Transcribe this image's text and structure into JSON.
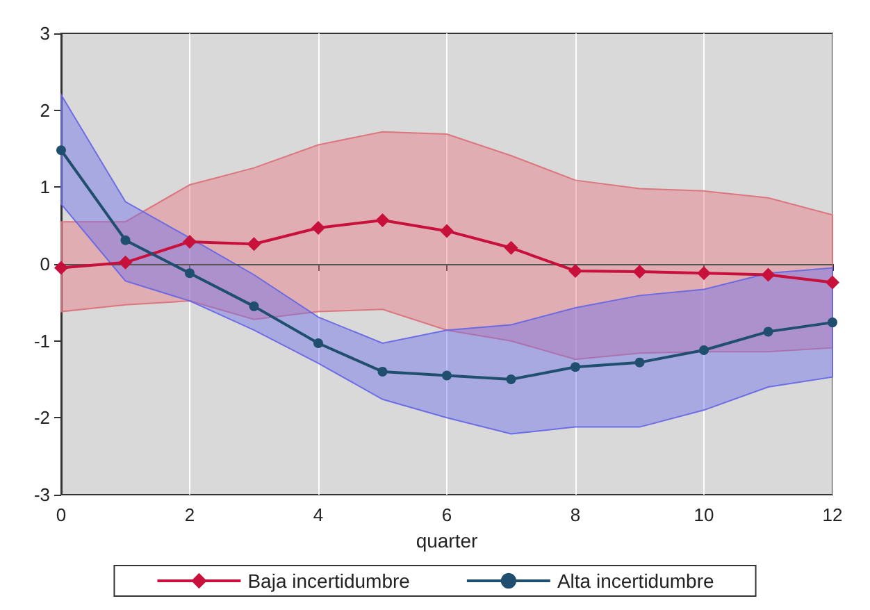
{
  "chart_data": {
    "type": "line",
    "xlabel": "quarter",
    "x": [
      0,
      1,
      2,
      3,
      4,
      5,
      6,
      7,
      8,
      9,
      10,
      11,
      12
    ],
    "series": [
      {
        "name": "Baja incertidumbre",
        "color": "#c8103c",
        "marker": "diamond",
        "values": [
          -0.05,
          0.02,
          0.29,
          0.26,
          0.47,
          0.57,
          0.43,
          0.21,
          -0.09,
          -0.1,
          -0.12,
          -0.14,
          -0.24
        ],
        "lower": [
          -0.62,
          -0.53,
          -0.48,
          -0.72,
          -0.62,
          -0.59,
          -0.86,
          -1.0,
          -1.24,
          -1.16,
          -1.14,
          -1.14,
          -1.09
        ],
        "upper": [
          0.55,
          0.55,
          1.03,
          1.25,
          1.55,
          1.72,
          1.69,
          1.41,
          1.09,
          0.98,
          0.95,
          0.86,
          0.64
        ]
      },
      {
        "name": "Alta incertidumbre",
        "color": "#1f4e6e",
        "marker": "circle",
        "values": [
          1.48,
          0.31,
          -0.12,
          -0.55,
          -1.03,
          -1.4,
          -1.45,
          -1.5,
          -1.34,
          -1.28,
          -1.12,
          -0.88,
          -0.76
        ],
        "lower": [
          0.78,
          -0.22,
          -0.48,
          -0.86,
          -1.29,
          -1.76,
          -2.0,
          -2.21,
          -2.12,
          -2.12,
          -1.9,
          -1.6,
          -1.47
        ],
        "upper": [
          2.2,
          0.81,
          0.34,
          -0.14,
          -0.69,
          -1.03,
          -0.86,
          -0.79,
          -0.57,
          -0.41,
          -0.33,
          -0.12,
          -0.05
        ]
      }
    ],
    "xlim": [
      0,
      12
    ],
    "xticks": [
      0,
      2,
      4,
      6,
      8,
      10,
      12
    ],
    "ylim": [
      -3,
      3
    ],
    "yticks": [
      -3,
      -2,
      -1,
      0,
      1,
      2,
      3
    ],
    "ref_lines": [
      {
        "axis": "y",
        "value": 0,
        "color": "#555555"
      }
    ],
    "grid": "x",
    "legend": "bottom",
    "line_style": "solid"
  }
}
